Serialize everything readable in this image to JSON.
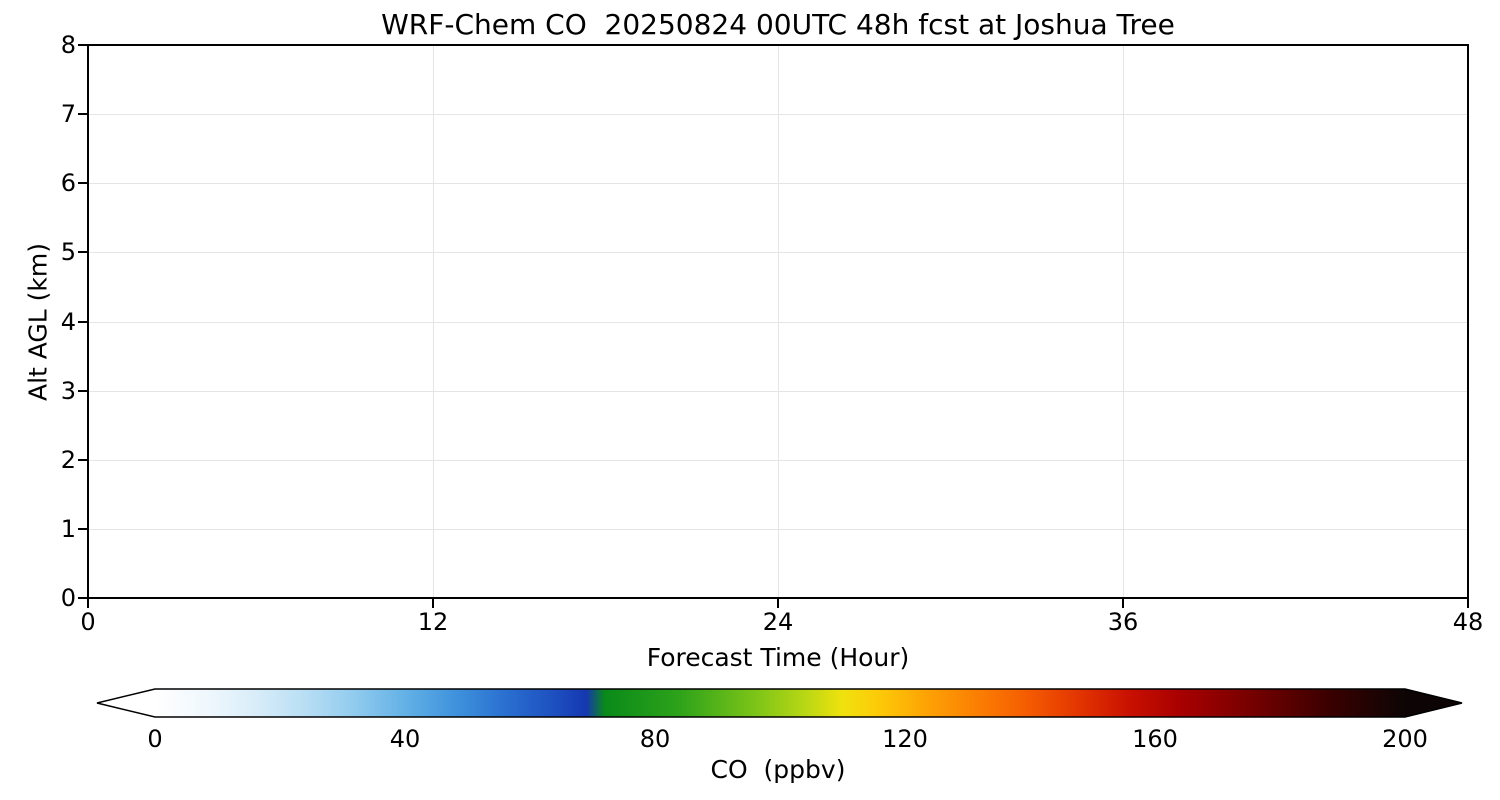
{
  "chart_data": {
    "type": "heatmap",
    "title": "WRF-Chem CO  20250824 00UTC 48h fcst at Joshua Tree",
    "xlabel": "Forecast Time (Hour)",
    "ylabel": "Alt AGL (km)",
    "xlim": [
      0,
      48
    ],
    "ylim": [
      0,
      8
    ],
    "x_tick_labels": [
      "0",
      "12",
      "24",
      "36",
      "48"
    ],
    "x_tick_values": [
      0,
      12,
      24,
      36,
      48
    ],
    "y_tick_labels": [
      "0",
      "1",
      "2",
      "3",
      "4",
      "5",
      "6",
      "7",
      "8"
    ],
    "y_tick_values": [
      0,
      1,
      2,
      3,
      4,
      5,
      6,
      7,
      8
    ],
    "grid": true,
    "series": [],
    "data_note": "plot area is rendered blank/white; no CO field values are visible",
    "colorbar": {
      "label": "CO  (ppbv)",
      "tick_labels": [
        "0",
        "40",
        "80",
        "120",
        "160",
        "200"
      ],
      "tick_values": [
        0,
        40,
        80,
        120,
        160,
        200
      ],
      "vmin": 0,
      "vmax": 200,
      "extend": "both",
      "under_color": "#ffffff",
      "over_color": "#0d0505",
      "orientation": "horizontal",
      "gradient_stops": [
        [
          0.0,
          "#ffffff"
        ],
        [
          0.04,
          "#f0f8fd"
        ],
        [
          0.08,
          "#d9edf9"
        ],
        [
          0.12,
          "#b8def4"
        ],
        [
          0.16,
          "#90cbee"
        ],
        [
          0.2,
          "#63b1e6"
        ],
        [
          0.24,
          "#3f93dc"
        ],
        [
          0.28,
          "#2a70d0"
        ],
        [
          0.32,
          "#1d4fc0"
        ],
        [
          0.345,
          "#1538b0"
        ],
        [
          0.36,
          "#0a8a1a"
        ],
        [
          0.42,
          "#2ea31a"
        ],
        [
          0.48,
          "#7cc418"
        ],
        [
          0.52,
          "#b8d714"
        ],
        [
          0.55,
          "#f0e20e"
        ],
        [
          0.58,
          "#fdc908"
        ],
        [
          0.62,
          "#fda004"
        ],
        [
          0.66,
          "#fb7d02"
        ],
        [
          0.7,
          "#f45a01"
        ],
        [
          0.74,
          "#e23400"
        ],
        [
          0.78,
          "#c91000"
        ],
        [
          0.82,
          "#a80000"
        ],
        [
          0.86,
          "#860000"
        ],
        [
          0.9,
          "#600000"
        ],
        [
          0.94,
          "#3a0000"
        ],
        [
          1.0,
          "#0d0505"
        ]
      ]
    }
  }
}
